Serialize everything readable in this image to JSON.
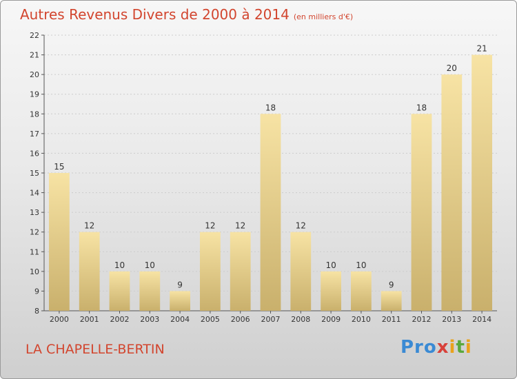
{
  "title": "Autres Revenus Divers de 2000 à 2014",
  "title_unit": "(en milliers d'€)",
  "location": "LA CHAPELLE-BERTIN",
  "logo": {
    "text": "Proxiti"
  },
  "colors": {
    "title": "#d2452e",
    "bar_light": "#f7e3a4",
    "bar_dark": "#c9b06c",
    "axis": "#555555"
  },
  "chart_data": {
    "type": "bar",
    "title": "Autres Revenus Divers de 2000 à 2014",
    "subtitle": "(en milliers d'€)",
    "xlabel": "",
    "ylabel": "",
    "categories": [
      "2000",
      "2001",
      "2002",
      "2003",
      "2004",
      "2005",
      "2006",
      "2007",
      "2008",
      "2009",
      "2010",
      "2011",
      "2012",
      "2013",
      "2014"
    ],
    "values": [
      15,
      12,
      10,
      10,
      9,
      12,
      12,
      18,
      12,
      10,
      10,
      9,
      18,
      20,
      21
    ],
    "ylim": [
      8,
      22
    ],
    "yticks": [
      8,
      9,
      10,
      11,
      12,
      13,
      14,
      15,
      16,
      17,
      18,
      19,
      20,
      21,
      22
    ],
    "grid": true,
    "data_labels": true
  }
}
